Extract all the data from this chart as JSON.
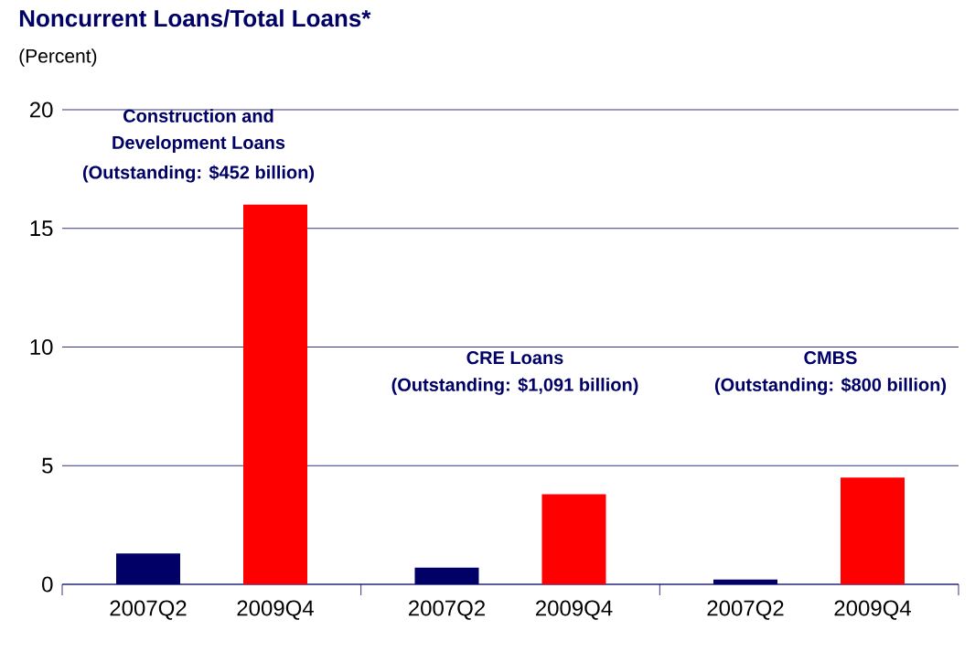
{
  "chart_data": {
    "type": "bar",
    "title": "Noncurrent Loans/Total Loans*",
    "subtitle": "(Percent)",
    "categories": [
      "2007Q2",
      "2009Q4",
      "2007Q2",
      "2009Q4",
      "2007Q2",
      "2009Q4"
    ],
    "values": [
      1.3,
      16.0,
      0.7,
      3.8,
      0.2,
      4.5
    ],
    "colors": [
      "#000066",
      "#ff0000",
      "#000066",
      "#ff0000",
      "#000066",
      "#ff0000"
    ],
    "ylim": [
      0,
      20
    ],
    "yticks": [
      0,
      5,
      10,
      15,
      20
    ],
    "grid": "y",
    "annotations": [
      "Construction  and",
      "Development Loans",
      "(Outstanding: $452 billion)",
      "CRE Loans",
      "(Outstanding: $1,091 billion)",
      "CMBS",
      "(Outstanding: $800 billion)"
    ]
  }
}
